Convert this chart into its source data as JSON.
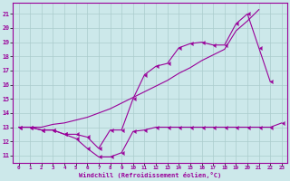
{
  "background_color": "#cce8ea",
  "grid_color": "#aacccc",
  "line_color": "#990099",
  "xlabel": "Windchill (Refroidissement éolien,°C)",
  "xlim": [
    -0.5,
    23.5
  ],
  "ylim": [
    10.5,
    21.8
  ],
  "xticks": [
    0,
    1,
    2,
    3,
    4,
    5,
    6,
    7,
    8,
    9,
    10,
    11,
    12,
    13,
    14,
    15,
    16,
    17,
    18,
    19,
    20,
    21,
    22,
    23
  ],
  "yticks": [
    11,
    12,
    13,
    14,
    15,
    16,
    17,
    18,
    19,
    20,
    21
  ],
  "line1_x": [
    0,
    1,
    2,
    3,
    4,
    5,
    6,
    7,
    8,
    9,
    10,
    11,
    12,
    13,
    14,
    15,
    16,
    17,
    18,
    19,
    20,
    21,
    22,
    23
  ],
  "line1_y": [
    13.0,
    13.0,
    12.8,
    12.8,
    12.5,
    12.2,
    11.5,
    10.9,
    10.9,
    11.2,
    12.7,
    12.8,
    13.0,
    13.0,
    13.0,
    13.0,
    13.0,
    13.0,
    13.0,
    13.0,
    13.0,
    13.0,
    13.0,
    13.3
  ],
  "line2_x": [
    0,
    1,
    2,
    3,
    4,
    5,
    6,
    7,
    8,
    9,
    10,
    11,
    12,
    13,
    14,
    15,
    16,
    17,
    18,
    19,
    20,
    21
  ],
  "line2_y": [
    13.0,
    13.0,
    13.0,
    13.2,
    13.3,
    13.5,
    13.7,
    14.0,
    14.3,
    14.7,
    15.1,
    15.5,
    15.9,
    16.3,
    16.8,
    17.2,
    17.7,
    18.1,
    18.5,
    19.8,
    20.5,
    21.3
  ],
  "line3_x": [
    0,
    1,
    2,
    3,
    4,
    5,
    6,
    7,
    8,
    9,
    10,
    11,
    12,
    13,
    14,
    15,
    16,
    17,
    18,
    19,
    20,
    21,
    22
  ],
  "line3_y": [
    13.0,
    13.0,
    12.8,
    12.8,
    12.5,
    12.5,
    12.3,
    11.5,
    12.8,
    12.8,
    15.0,
    16.7,
    17.3,
    17.5,
    18.6,
    18.9,
    19.0,
    18.8,
    18.8,
    20.3,
    21.0,
    18.6,
    16.2
  ]
}
